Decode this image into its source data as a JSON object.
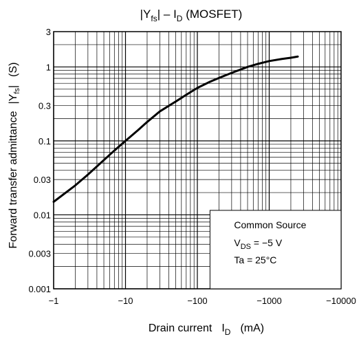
{
  "chart_data": {
    "type": "line",
    "title_main": "|Y",
    "title_sub": "fs",
    "title_mid": "| – I",
    "title_sub2": "D",
    "title_tail": " (MOSFET)",
    "xlabel": "Drain current",
    "xlabel_symbol": "I",
    "xlabel_symbol_sub": "D",
    "xlabel_unit": "(mA)",
    "ylabel": "Forward transfer admittance",
    "ylabel_symbol": "|Y",
    "ylabel_symbol_sub": "fs",
    "ylabel_symbol_end": "|",
    "ylabel_unit": "(S)",
    "x_scale": "log",
    "y_scale": "log",
    "x_axis_reversed_sign": true,
    "xlim": [
      -1,
      -10000
    ],
    "ylim": [
      0.001,
      3
    ],
    "x_ticks": [
      "−1",
      "−10",
      "−100",
      "−1000",
      "−10000"
    ],
    "y_ticks": [
      "0.001",
      "0.003",
      "0.01",
      "0.03",
      "0.1",
      "0.3",
      "1",
      "3"
    ],
    "grid": true,
    "annotation": {
      "line1": "Common Source",
      "line2_prefix": "V",
      "line2_sub": "DS",
      "line2_suffix": " = −5 V",
      "line3": "Ta = 25°C"
    },
    "series": [
      {
        "x": [
          -1,
          -2,
          -3,
          -5,
          -7,
          -10,
          -15,
          -20,
          -30,
          -50,
          -70,
          -100,
          -150,
          -200,
          -300,
          -500,
          -700,
          -1000,
          -1500,
          -2000,
          -2500
        ],
        "y": [
          0.015,
          0.025,
          0.035,
          0.055,
          0.074,
          0.1,
          0.14,
          0.18,
          0.25,
          0.34,
          0.42,
          0.52,
          0.63,
          0.71,
          0.83,
          1.0,
          1.1,
          1.2,
          1.28,
          1.33,
          1.38
        ]
      }
    ]
  }
}
